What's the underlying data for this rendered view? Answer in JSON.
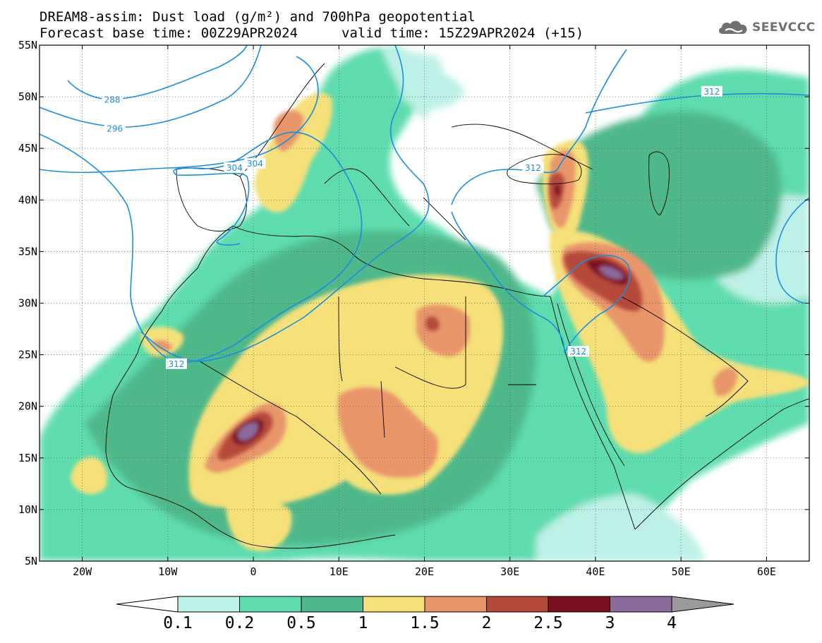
{
  "header": {
    "title_line1": "DREAM8-assim: Dust load (g/m²) and 700hPa geopotential",
    "title_line2_base": "Forecast base time: 00Z29APR2024",
    "title_line2_valid": "valid time: 15Z29APR2024 (+15)",
    "logo_text": "SEEVCCC",
    "logo_icon": "cloud-icon"
  },
  "map": {
    "lon_range": [
      -25,
      65
    ],
    "lat_range": [
      5,
      55
    ],
    "lon_ticks": [
      {
        "value": -20,
        "label": "20W"
      },
      {
        "value": -10,
        "label": "10W"
      },
      {
        "value": 0,
        "label": "0"
      },
      {
        "value": 10,
        "label": "10E"
      },
      {
        "value": 20,
        "label": "20E"
      },
      {
        "value": 30,
        "label": "30E"
      },
      {
        "value": 40,
        "label": "40E"
      },
      {
        "value": 50,
        "label": "50E"
      },
      {
        "value": 60,
        "label": "60E"
      }
    ],
    "lat_ticks": [
      {
        "value": 55,
        "label": "55N"
      },
      {
        "value": 50,
        "label": "50N"
      },
      {
        "value": 45,
        "label": "45N"
      },
      {
        "value": 40,
        "label": "40N"
      },
      {
        "value": 35,
        "label": "35N"
      },
      {
        "value": 30,
        "label": "30N"
      },
      {
        "value": 25,
        "label": "25N"
      },
      {
        "value": 20,
        "label": "20N"
      },
      {
        "value": 15,
        "label": "15N"
      },
      {
        "value": 10,
        "label": "10N"
      },
      {
        "value": 5,
        "label": "5N"
      }
    ],
    "contour_labels": [
      {
        "text": "288",
        "lon": -16.5,
        "lat": 49.7
      },
      {
        "text": "296",
        "lon": -16.2,
        "lat": 46.9
      },
      {
        "text": "304",
        "lon": -2.2,
        "lat": 43.1
      },
      {
        "text": "304",
        "lon": 0.2,
        "lat": 43.5
      },
      {
        "text": "312",
        "lon": -9.0,
        "lat": 24.1
      },
      {
        "text": "312",
        "lon": 38.0,
        "lat": 25.3
      },
      {
        "text": "312",
        "lon": 32.7,
        "lat": 43.1
      },
      {
        "text": "312",
        "lon": 53.6,
        "lat": 50.5
      }
    ]
  },
  "colorbar": {
    "labels": [
      "0.1",
      "0.2",
      "0.5",
      "1",
      "1.5",
      "2",
      "2.5",
      "3",
      "4"
    ],
    "colors": [
      "#ffffff",
      "#bdf0e6",
      "#5edcae",
      "#4fb88a",
      "#f5e07a",
      "#e8956a",
      "#b5493a",
      "#7a1020",
      "#8c6a9c",
      "#9a9a9a"
    ]
  }
}
